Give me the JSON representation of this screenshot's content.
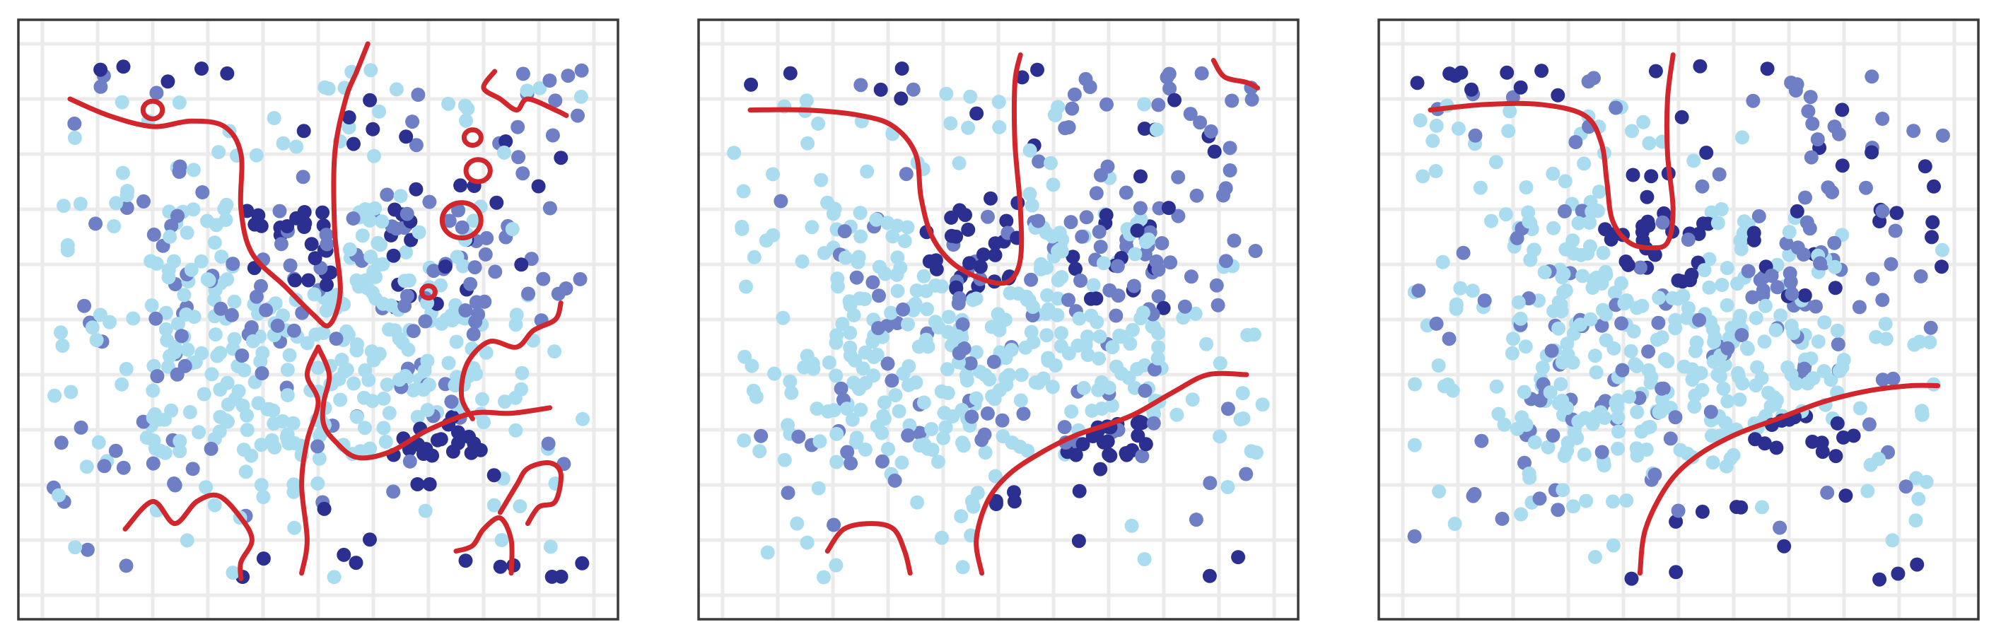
{
  "figure": {
    "palette": {
      "light": "#a9dcef",
      "mid": "#6e7fc6",
      "dark": "#2b3090",
      "boundary": "#d1262b",
      "frame": "#3a3a3a",
      "grid": "#ebebeb"
    },
    "legend": "none",
    "axes_labels_shown": false
  },
  "chart_data": [
    {
      "type": "scatter",
      "panel": 1,
      "xlim": [
        0,
        100
      ],
      "ylim": [
        0,
        100
      ],
      "grid": true,
      "classes": [
        "light",
        "mid",
        "dark"
      ],
      "seed": 11,
      "boundaries": [
        [
          [
            5,
            90
          ],
          [
            12,
            87
          ],
          [
            20,
            85
          ],
          [
            27,
            86
          ],
          [
            33,
            85
          ],
          [
            36,
            80
          ],
          [
            36,
            70
          ],
          [
            38,
            62
          ],
          [
            44,
            56
          ],
          [
            49,
            51
          ],
          [
            52,
            49
          ],
          [
            54,
            55
          ],
          [
            53,
            66
          ],
          [
            53,
            80
          ],
          [
            55,
            90
          ],
          [
            57,
            95
          ],
          [
            59,
            100
          ]
        ],
        [
          [
            50,
            45
          ],
          [
            52,
            40
          ],
          [
            51,
            35
          ],
          [
            51,
            31
          ],
          [
            53,
            28
          ],
          [
            57,
            25
          ],
          [
            63,
            26
          ],
          [
            70,
            30
          ],
          [
            78,
            33
          ],
          [
            85,
            33
          ],
          [
            92,
            34
          ]
        ],
        [
          [
            50,
            45
          ],
          [
            48,
            40
          ],
          [
            50,
            35
          ],
          [
            48,
            28
          ],
          [
            47,
            20
          ],
          [
            48,
            10
          ],
          [
            47,
            4
          ]
        ],
        [
          [
            78,
            32
          ],
          [
            76,
            36
          ],
          [
            77,
            42
          ],
          [
            81,
            46
          ],
          [
            86,
            45
          ],
          [
            89,
            48
          ],
          [
            93,
            50
          ],
          [
            94,
            53
          ]
        ],
        [
          [
            15,
            12
          ],
          [
            20,
            17
          ],
          [
            24,
            13
          ],
          [
            28,
            17
          ],
          [
            32,
            18
          ],
          [
            36,
            14
          ],
          [
            38,
            10
          ],
          [
            36,
            6
          ],
          [
            36,
            3
          ]
        ],
        [
          [
            75,
            8
          ],
          [
            78,
            9
          ],
          [
            80,
            12
          ],
          [
            83,
            14
          ],
          [
            85,
            10
          ],
          [
            85,
            4
          ]
        ],
        [
          [
            83,
            15
          ],
          [
            86,
            20
          ],
          [
            88,
            23
          ],
          [
            92,
            24
          ],
          [
            94,
            22
          ],
          [
            93,
            17
          ],
          [
            90,
            16
          ],
          [
            88,
            13
          ]
        ],
        [
          [
            82,
            95
          ],
          [
            80,
            92
          ],
          [
            83,
            90
          ],
          [
            86,
            88
          ],
          [
            88,
            90
          ],
          [
            93,
            88
          ],
          [
            95,
            87
          ]
        ]
      ],
      "loops": [
        {
          "cx": 20,
          "cy": 88,
          "r": 1.6
        },
        {
          "cx": 78,
          "cy": 83,
          "r": 1.4
        },
        {
          "cx": 79,
          "cy": 77,
          "r": 2.0
        },
        {
          "cx": 76,
          "cy": 68,
          "r": 3.2
        },
        {
          "cx": 70,
          "cy": 55,
          "r": 1.1
        }
      ]
    },
    {
      "type": "scatter",
      "panel": 2,
      "xlim": [
        0,
        100
      ],
      "ylim": [
        0,
        100
      ],
      "grid": true,
      "classes": [
        "light",
        "mid",
        "dark"
      ],
      "seed": 29,
      "boundaries": [
        [
          [
            5,
            88
          ],
          [
            15,
            88
          ],
          [
            25,
            87
          ],
          [
            31,
            85
          ],
          [
            35,
            80
          ],
          [
            36,
            72
          ],
          [
            38,
            65
          ],
          [
            42,
            60
          ],
          [
            48,
            57
          ],
          [
            52,
            57
          ],
          [
            54,
            61
          ],
          [
            54,
            70
          ],
          [
            53,
            82
          ],
          [
            53,
            93
          ],
          [
            54,
            98
          ]
        ],
        [
          [
            47,
            4
          ],
          [
            46,
            10
          ],
          [
            48,
            17
          ],
          [
            52,
            22
          ],
          [
            58,
            26
          ],
          [
            64,
            29
          ],
          [
            70,
            31
          ],
          [
            75,
            33
          ],
          [
            82,
            37
          ],
          [
            88,
            40
          ],
          [
            95,
            40
          ]
        ],
        [
          [
            19,
            8
          ],
          [
            22,
            12
          ],
          [
            27,
            13
          ],
          [
            31,
            12
          ],
          [
            33,
            8
          ],
          [
            34,
            4
          ]
        ],
        [
          [
            89,
            97
          ],
          [
            91,
            94
          ],
          [
            95,
            93
          ],
          [
            97,
            92
          ]
        ]
      ],
      "loops": []
    },
    {
      "type": "scatter",
      "panel": 3,
      "xlim": [
        0,
        100
      ],
      "ylim": [
        0,
        100
      ],
      "grid": true,
      "classes": [
        "light",
        "mid",
        "dark"
      ],
      "seed": 47,
      "boundaries": [
        [
          [
            5,
            88
          ],
          [
            15,
            89
          ],
          [
            25,
            89
          ],
          [
            33,
            87
          ],
          [
            36,
            82
          ],
          [
            37,
            75
          ],
          [
            38,
            68
          ],
          [
            41,
            64
          ],
          [
            45,
            63
          ],
          [
            48,
            64
          ],
          [
            49,
            70
          ],
          [
            48,
            80
          ],
          [
            48,
            90
          ],
          [
            49,
            98
          ]
        ],
        [
          [
            43,
            4
          ],
          [
            44,
            12
          ],
          [
            48,
            20
          ],
          [
            53,
            25
          ],
          [
            60,
            29
          ],
          [
            68,
            32
          ],
          [
            76,
            35
          ],
          [
            84,
            37
          ],
          [
            92,
            38
          ],
          [
            97,
            38
          ]
        ]
      ],
      "loops": []
    }
  ]
}
